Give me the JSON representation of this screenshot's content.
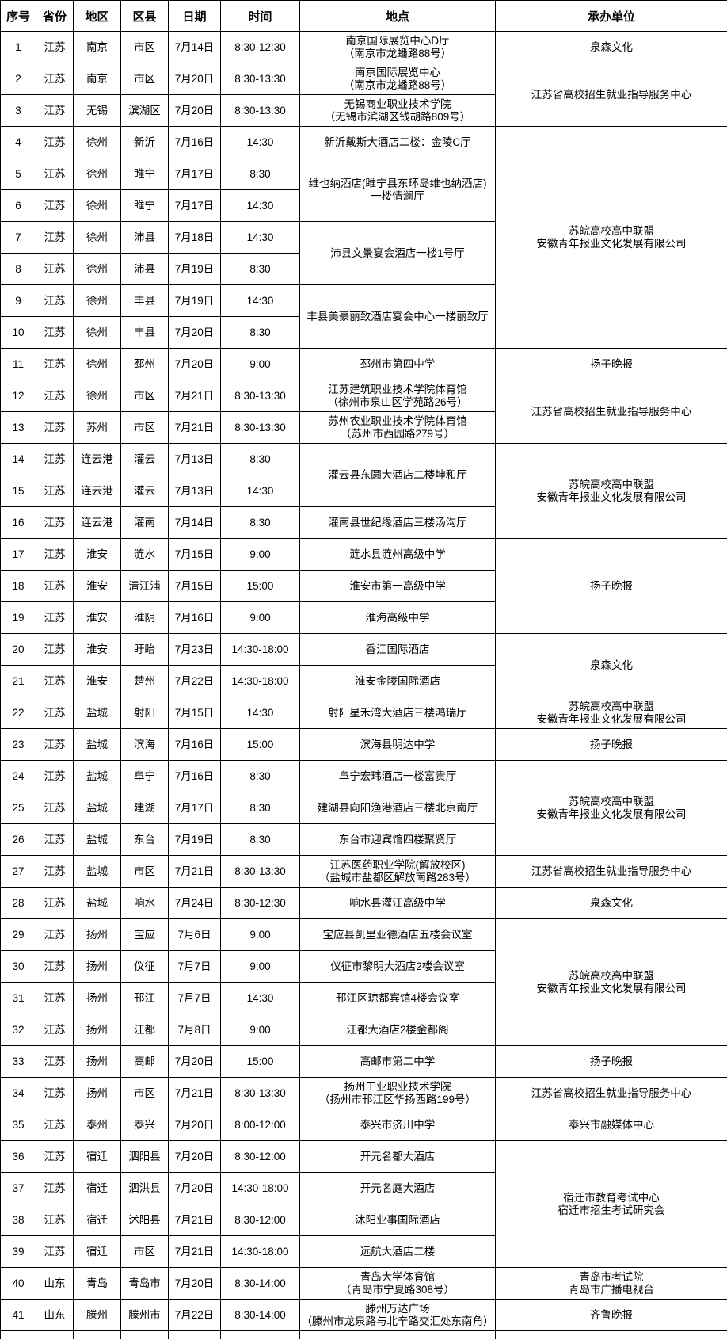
{
  "table": {
    "columns": [
      {
        "key": "no",
        "label": "序号"
      },
      {
        "key": "province",
        "label": "省份"
      },
      {
        "key": "region",
        "label": "地区"
      },
      {
        "key": "district",
        "label": "区县"
      },
      {
        "key": "date",
        "label": "日期"
      },
      {
        "key": "time",
        "label": "时间"
      },
      {
        "key": "location",
        "label": "地点"
      },
      {
        "key": "organizer",
        "label": "承办单位"
      }
    ],
    "rows": [
      {
        "no": "1",
        "province": "江苏",
        "region": "南京",
        "district": "市区",
        "date": "7月14日",
        "time": "8:30-12:30",
        "location": {
          "span": 1,
          "lines": [
            "南京国际展览中心D厅",
            "（南京市龙蟠路88号）"
          ]
        },
        "organizer": {
          "span": 1,
          "lines": [
            "泉森文化"
          ]
        }
      },
      {
        "no": "2",
        "province": "江苏",
        "region": "南京",
        "district": "市区",
        "date": "7月20日",
        "time": "8:30-13:30",
        "location": {
          "span": 1,
          "lines": [
            "南京国际展览中心",
            "（南京市龙蟠路88号）"
          ]
        },
        "organizer": {
          "span": 2,
          "lines": [
            "江苏省高校招生就业指导服务中心"
          ]
        }
      },
      {
        "no": "3",
        "province": "江苏",
        "region": "无锡",
        "district": "滨湖区",
        "date": "7月20日",
        "time": "8:30-13:30",
        "location": {
          "span": 1,
          "lines": [
            "无锡商业职业技术学院",
            "（无锡市滨湖区钱胡路809号）"
          ]
        },
        "organizer": null
      },
      {
        "no": "4",
        "province": "江苏",
        "region": "徐州",
        "district": "新沂",
        "date": "7月16日",
        "time": "14:30",
        "location": {
          "span": 1,
          "lines": [
            "新沂戴斯大酒店二楼：金陵C厅"
          ]
        },
        "organizer": {
          "span": 7,
          "lines": [
            "苏皖高校高中联盟",
            "安徽青年报业文化发展有限公司"
          ]
        }
      },
      {
        "no": "5",
        "province": "江苏",
        "region": "徐州",
        "district": "睢宁",
        "date": "7月17日",
        "time": "8:30",
        "location": {
          "span": 2,
          "lines": [
            "维也纳酒店(睢宁县东环岛维也纳酒店)",
            "一楼情澜厅"
          ]
        },
        "organizer": null
      },
      {
        "no": "6",
        "province": "江苏",
        "region": "徐州",
        "district": "睢宁",
        "date": "7月17日",
        "time": "14:30",
        "location": null,
        "organizer": null
      },
      {
        "no": "7",
        "province": "江苏",
        "region": "徐州",
        "district": "沛县",
        "date": "7月18日",
        "time": "14:30",
        "location": {
          "span": 2,
          "lines": [
            "沛县文景宴会酒店一楼1号厅"
          ]
        },
        "organizer": null
      },
      {
        "no": "8",
        "province": "江苏",
        "region": "徐州",
        "district": "沛县",
        "date": "7月19日",
        "time": "8:30",
        "location": null,
        "organizer": null
      },
      {
        "no": "9",
        "province": "江苏",
        "region": "徐州",
        "district": "丰县",
        "date": "7月19日",
        "time": "14:30",
        "location": {
          "span": 2,
          "lines": [
            "丰县美豪丽致酒店宴会中心一楼丽致厅"
          ]
        },
        "organizer": null
      },
      {
        "no": "10",
        "province": "江苏",
        "region": "徐州",
        "district": "丰县",
        "date": "7月20日",
        "time": "8:30",
        "location": null,
        "organizer": null
      },
      {
        "no": "11",
        "province": "江苏",
        "region": "徐州",
        "district": "邳州",
        "date": "7月20日",
        "time": "9:00",
        "location": {
          "span": 1,
          "lines": [
            "邳州市第四中学"
          ]
        },
        "organizer": {
          "span": 1,
          "lines": [
            "扬子晚报"
          ]
        }
      },
      {
        "no": "12",
        "province": "江苏",
        "region": "徐州",
        "district": "市区",
        "date": "7月21日",
        "time": "8:30-13:30",
        "location": {
          "span": 1,
          "lines": [
            "江苏建筑职业技术学院体育馆",
            "（徐州市泉山区学苑路26号）"
          ]
        },
        "organizer": {
          "span": 2,
          "lines": [
            "江苏省高校招生就业指导服务中心"
          ]
        }
      },
      {
        "no": "13",
        "province": "江苏",
        "region": "苏州",
        "district": "市区",
        "date": "7月21日",
        "time": "8:30-13:30",
        "location": {
          "span": 1,
          "lines": [
            "苏州农业职业技术学院体育馆",
            "（苏州市西园路279号）"
          ]
        },
        "organizer": null
      },
      {
        "no": "14",
        "province": "江苏",
        "region": "连云港",
        "district": "灌云",
        "date": "7月13日",
        "time": "8:30",
        "location": {
          "span": 2,
          "lines": [
            "灌云县东圆大酒店二楼坤和厅"
          ]
        },
        "organizer": {
          "span": 3,
          "lines": [
            "苏皖高校高中联盟",
            "安徽青年报业文化发展有限公司"
          ]
        }
      },
      {
        "no": "15",
        "province": "江苏",
        "region": "连云港",
        "district": "灌云",
        "date": "7月13日",
        "time": "14:30",
        "location": null,
        "organizer": null
      },
      {
        "no": "16",
        "province": "江苏",
        "region": "连云港",
        "district": "灌南",
        "date": "7月14日",
        "time": "8:30",
        "location": {
          "span": 1,
          "lines": [
            "灌南县世纪缘酒店三楼汤沟厅"
          ]
        },
        "organizer": null
      },
      {
        "no": "17",
        "province": "江苏",
        "region": "淮安",
        "district": "涟水",
        "date": "7月15日",
        "time": "9:00",
        "location": {
          "span": 1,
          "lines": [
            "涟水县涟州高级中学"
          ]
        },
        "organizer": {
          "span": 3,
          "lines": [
            "扬子晚报"
          ]
        }
      },
      {
        "no": "18",
        "province": "江苏",
        "region": "淮安",
        "district": "清江浦",
        "date": "7月15日",
        "time": "15:00",
        "location": {
          "span": 1,
          "lines": [
            "淮安市第一高级中学"
          ]
        },
        "organizer": null
      },
      {
        "no": "19",
        "province": "江苏",
        "region": "淮安",
        "district": "淮阴",
        "date": "7月16日",
        "time": "9:00",
        "location": {
          "span": 1,
          "lines": [
            "淮海高级中学"
          ]
        },
        "organizer": null
      },
      {
        "no": "20",
        "province": "江苏",
        "region": "淮安",
        "district": "盱眙",
        "date": "7月23日",
        "time": "14:30-18:00",
        "location": {
          "span": 1,
          "lines": [
            "香江国际酒店"
          ]
        },
        "organizer": {
          "span": 2,
          "lines": [
            "泉森文化"
          ]
        }
      },
      {
        "no": "21",
        "province": "江苏",
        "region": "淮安",
        "district": "楚州",
        "date": "7月22日",
        "time": "14:30-18:00",
        "location": {
          "span": 1,
          "lines": [
            "淮安金陵国际酒店"
          ]
        },
        "organizer": null
      },
      {
        "no": "22",
        "province": "江苏",
        "region": "盐城",
        "district": "射阳",
        "date": "7月15日",
        "time": "14:30",
        "location": {
          "span": 1,
          "lines": [
            "射阳星禾湾大酒店三楼鸿瑞厅"
          ]
        },
        "organizer": {
          "span": 1,
          "lines": [
            "苏皖高校高中联盟",
            "安徽青年报业文化发展有限公司"
          ]
        }
      },
      {
        "no": "23",
        "province": "江苏",
        "region": "盐城",
        "district": "滨海",
        "date": "7月16日",
        "time": "15:00",
        "location": {
          "span": 1,
          "lines": [
            "滨海县明达中学"
          ]
        },
        "organizer": {
          "span": 1,
          "lines": [
            "扬子晚报"
          ]
        }
      },
      {
        "no": "24",
        "province": "江苏",
        "region": "盐城",
        "district": "阜宁",
        "date": "7月16日",
        "time": "8:30",
        "location": {
          "span": 1,
          "lines": [
            "阜宁宏玮酒店一楼富贵厅"
          ]
        },
        "organizer": {
          "span": 3,
          "lines": [
            "苏皖高校高中联盟",
            "安徽青年报业文化发展有限公司"
          ]
        }
      },
      {
        "no": "25",
        "province": "江苏",
        "region": "盐城",
        "district": "建湖",
        "date": "7月17日",
        "time": "8:30",
        "location": {
          "span": 1,
          "lines": [
            "建湖县向阳渔港酒店三楼北京南厅"
          ]
        },
        "organizer": null
      },
      {
        "no": "26",
        "province": "江苏",
        "region": "盐城",
        "district": "东台",
        "date": "7月19日",
        "time": "8:30",
        "location": {
          "span": 1,
          "lines": [
            "东台市迎宾馆四楼聚贤厅"
          ]
        },
        "organizer": null
      },
      {
        "no": "27",
        "province": "江苏",
        "region": "盐城",
        "district": "市区",
        "date": "7月21日",
        "time": "8:30-13:30",
        "location": {
          "span": 1,
          "lines": [
            "江苏医药职业学院(解放校区)",
            "（盐城市盐都区解放南路283号）"
          ]
        },
        "organizer": {
          "span": 1,
          "lines": [
            "江苏省高校招生就业指导服务中心"
          ]
        }
      },
      {
        "no": "28",
        "province": "江苏",
        "region": "盐城",
        "district": "响水",
        "date": "7月24日",
        "time": "8:30-12:30",
        "location": {
          "span": 1,
          "lines": [
            "响水县灌江高级中学"
          ]
        },
        "organizer": {
          "span": 1,
          "lines": [
            "泉森文化"
          ]
        }
      },
      {
        "no": "29",
        "province": "江苏",
        "region": "扬州",
        "district": "宝应",
        "date": "7月6日",
        "time": "9:00",
        "location": {
          "span": 1,
          "lines": [
            "宝应县凯里亚德酒店五楼会议室"
          ]
        },
        "organizer": {
          "span": 4,
          "lines": [
            "苏皖高校高中联盟",
            "安徽青年报业文化发展有限公司"
          ]
        }
      },
      {
        "no": "30",
        "province": "江苏",
        "region": "扬州",
        "district": "仪征",
        "date": "7月7日",
        "time": "9:00",
        "location": {
          "span": 1,
          "lines": [
            "仪征市黎明大酒店2楼会议室"
          ]
        },
        "organizer": null
      },
      {
        "no": "31",
        "province": "江苏",
        "region": "扬州",
        "district": "邗江",
        "date": "7月7日",
        "time": "14:30",
        "location": {
          "span": 1,
          "lines": [
            "邗江区琼都宾馆4楼会议室"
          ]
        },
        "organizer": null
      },
      {
        "no": "32",
        "province": "江苏",
        "region": "扬州",
        "district": "江都",
        "date": "7月8日",
        "time": "9:00",
        "location": {
          "span": 1,
          "lines": [
            "江都大酒店2楼金都阁"
          ]
        },
        "organizer": null
      },
      {
        "no": "33",
        "province": "江苏",
        "region": "扬州",
        "district": "高邮",
        "date": "7月20日",
        "time": "15:00",
        "location": {
          "span": 1,
          "lines": [
            "高邮市第二中学"
          ]
        },
        "organizer": {
          "span": 1,
          "lines": [
            "扬子晚报"
          ]
        }
      },
      {
        "no": "34",
        "province": "江苏",
        "region": "扬州",
        "district": "市区",
        "date": "7月21日",
        "time": "8:30-13:30",
        "location": {
          "span": 1,
          "lines": [
            "扬州工业职业技术学院",
            "（扬州市邗江区华扬西路199号）"
          ]
        },
        "organizer": {
          "span": 1,
          "lines": [
            "江苏省高校招生就业指导服务中心"
          ]
        }
      },
      {
        "no": "35",
        "province": "江苏",
        "region": "泰州",
        "district": "泰兴",
        "date": "7月20日",
        "time": "8:00-12:00",
        "location": {
          "span": 1,
          "lines": [
            "泰兴市济川中学"
          ]
        },
        "organizer": {
          "span": 1,
          "lines": [
            "泰兴市融媒体中心"
          ]
        }
      },
      {
        "no": "36",
        "province": "江苏",
        "region": "宿迁",
        "district": "泗阳县",
        "date": "7月20日",
        "time": "8:30-12:00",
        "location": {
          "span": 1,
          "lines": [
            "开元名都大酒店"
          ]
        },
        "organizer": {
          "span": 4,
          "lines": [
            "宿迁市教育考试中心",
            "宿迁市招生考试研究会"
          ]
        }
      },
      {
        "no": "37",
        "province": "江苏",
        "region": "宿迁",
        "district": "泗洪县",
        "date": "7月20日",
        "time": "14:30-18:00",
        "location": {
          "span": 1,
          "lines": [
            "开元名庭大酒店"
          ]
        },
        "organizer": null
      },
      {
        "no": "38",
        "province": "江苏",
        "region": "宿迁",
        "district": "沭阳县",
        "date": "7月21日",
        "time": "8:30-12:00",
        "location": {
          "span": 1,
          "lines": [
            "沭阳业事国际酒店"
          ]
        },
        "organizer": null
      },
      {
        "no": "39",
        "province": "江苏",
        "region": "宿迁",
        "district": "市区",
        "date": "7月21日",
        "time": "14:30-18:00",
        "location": {
          "span": 1,
          "lines": [
            "远航大酒店二楼"
          ]
        },
        "organizer": null
      },
      {
        "no": "40",
        "province": "山东",
        "region": "青岛",
        "district": "青岛市",
        "date": "7月20日",
        "time": "8:30-14:00",
        "location": {
          "span": 1,
          "lines": [
            "青岛大学体育馆",
            "（青岛市宁夏路308号）"
          ]
        },
        "organizer": {
          "span": 1,
          "lines": [
            "青岛市考试院",
            "青岛市广播电视台"
          ]
        }
      },
      {
        "no": "41",
        "province": "山东",
        "region": "滕州",
        "district": "滕州市",
        "date": "7月22日",
        "time": "8:30-14:00",
        "location": {
          "span": 1,
          "lines": [
            "滕州万达广场",
            "（滕州市龙泉路与北辛路交汇处东南角）"
          ]
        },
        "organizer": {
          "span": 1,
          "lines": [
            "齐鲁晚报"
          ]
        }
      }
    ]
  }
}
